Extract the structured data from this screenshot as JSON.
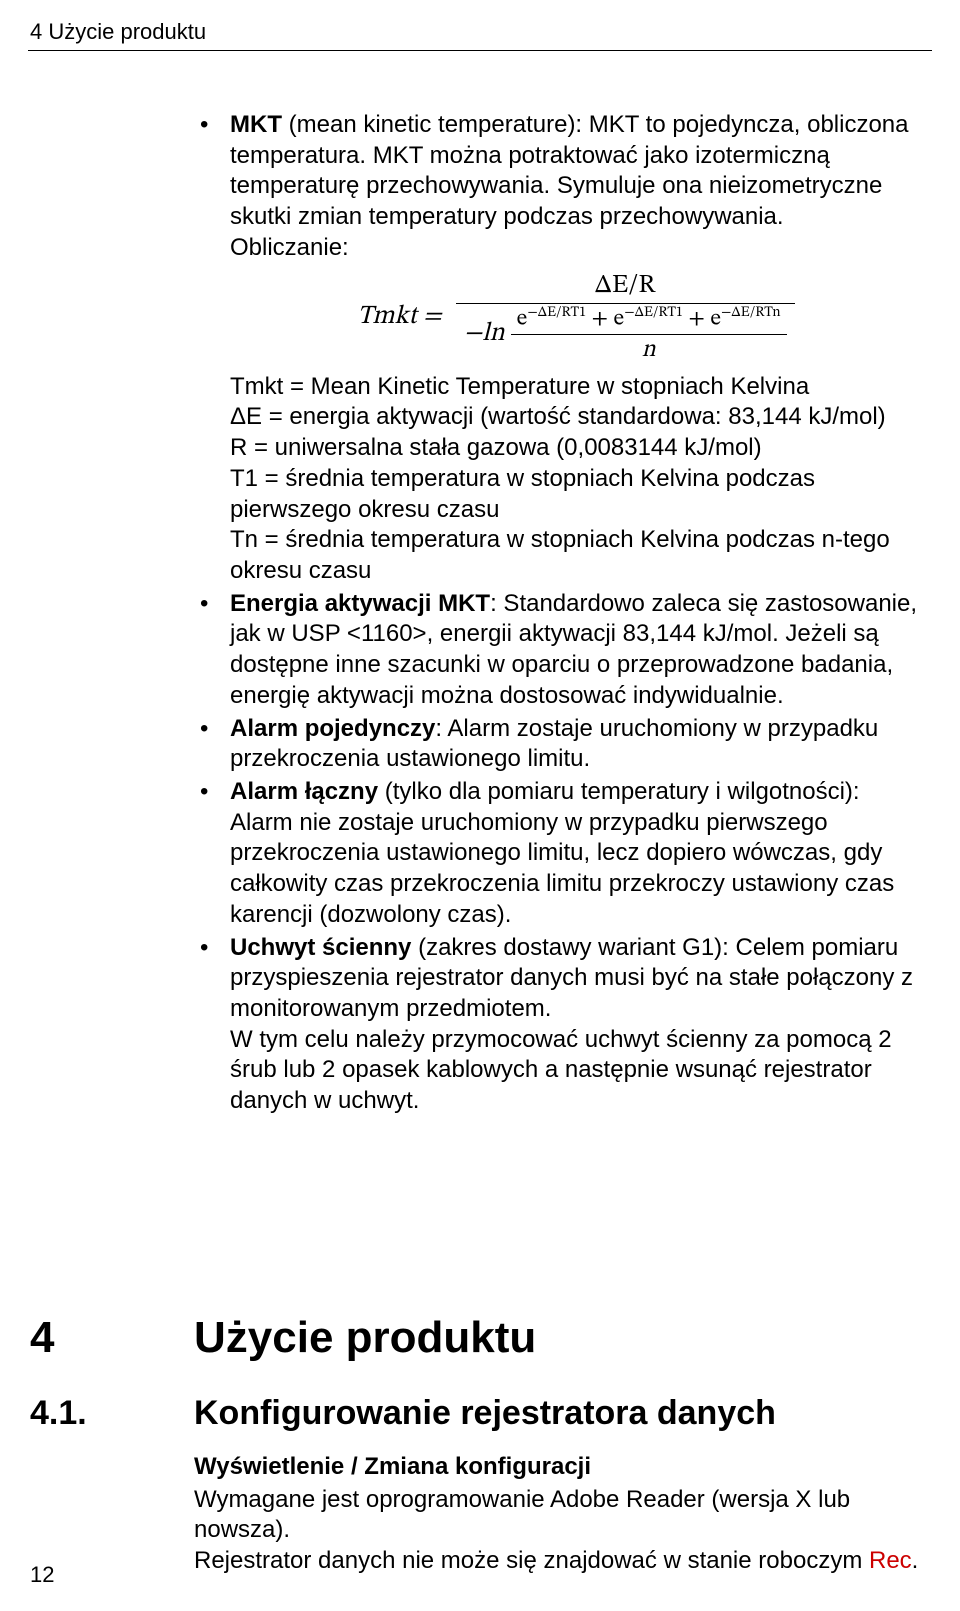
{
  "header": "4 Użycie produktu",
  "page_number": "12",
  "list": {
    "item1": {
      "label": "MKT",
      "rest1": " (mean kinetic temperature): MKT to pojedyncza, obliczona temperatura. MKT można potraktować jako izotermiczną temperaturę przechowywania. Symuluje ona nieizometryczne skutki zmian temperatury podczas przechowywania.",
      "calc": "Obliczanie:",
      "formula": {
        "lhs": "Tmkt =",
        "top": "ΔE/R",
        "minus_ln": "−ln",
        "exp_prefix": "e",
        "exp1": "−ΔE/RT1",
        "plus": " + ",
        "exp2": "−ΔE/RT1",
        "exp3": "−ΔE/RTn",
        "den_n": "n"
      },
      "defs": {
        "d1": "Tmkt = Mean Kinetic Temperature w stopniach Kelvina",
        "d2": "ΔE = energia aktywacji (wartość standardowa: 83,144 kJ/mol)",
        "d3": "R = uniwersalna stała gazowa (0,0083144 kJ/mol)",
        "d4": "T1 = średnia temperatura w stopniach Kelvina podczas pierwszego okresu czasu",
        "d5": "Tn = średnia temperatura w stopniach Kelvina podczas n-tego okresu czasu"
      }
    },
    "item2": {
      "label": "Energia aktywacji MKT",
      "rest": ": Standardowo zaleca się zastosowanie, jak w USP <1160>, energii aktywacji 83,144 kJ/mol. Jeżeli są dostępne inne szacunki w oparciu o przeprowadzone badania, energię aktywacji można dostosować indywidualnie."
    },
    "item3": {
      "label": "Alarm pojedynczy",
      "rest": ": Alarm zostaje uruchomiony w przypadku przekroczenia ustawionego limitu."
    },
    "item4": {
      "label": "Alarm łączny",
      "rest": " (tylko dla pomiaru temperatury i wilgotności): Alarm nie zostaje uruchomiony w przypadku pierwszego przekroczenia ustawionego limitu, lecz dopiero wówczas, gdy całkowity czas przekroczenia limitu przekroczy ustawiony czas karencji (dozwolony czas)."
    },
    "item5": {
      "label": "Uchwyt ścienny",
      "rest": " (zakres dostawy wariant G1): Celem pomiaru przyspieszenia rejestrator danych musi być na stałe połączony z monitorowanym przedmiotem.",
      "line2": "W tym celu należy przymocować uchwyt ścienny za pomocą 2 śrub lub 2 opasek kablowych a następnie wsunąć rejestrator danych w uchwyt."
    }
  },
  "h4": {
    "num": "4",
    "title": "Użycie produktu"
  },
  "h41": {
    "num": "4.1.",
    "title": "Konfigurowanie rejestratora danych"
  },
  "sub": {
    "title": "Wyświetlenie / Zmiana konfiguracji",
    "p1": "Wymagane jest oprogramowanie Adobe Reader (wersja X lub nowsza).",
    "p2": "Rejestrator danych nie może się znajdować w stanie roboczym ",
    "rec": "Rec",
    "dot": "."
  },
  "colors": {
    "text": "#000000",
    "red": "#cc0000",
    "bg": "#ffffff"
  },
  "fonts": {
    "body": "Arial",
    "math": "Cambria Math",
    "body_size_pt": 18,
    "h4_size_pt": 33,
    "h41_size_pt": 25
  }
}
